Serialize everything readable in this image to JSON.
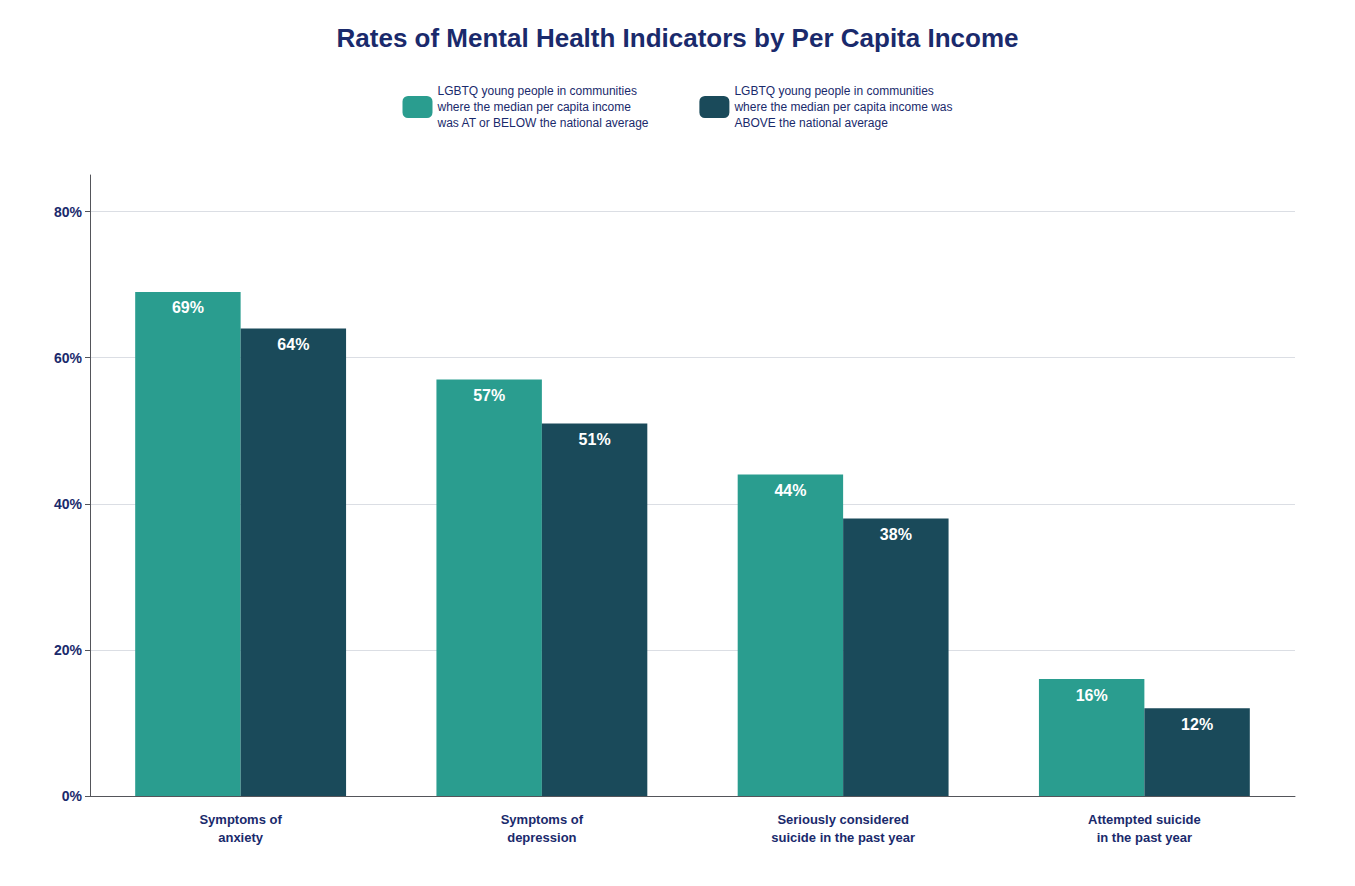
{
  "chart_data": {
    "type": "bar",
    "title": "Rates of Mental Health Indicators by Per Capita Income",
    "categories": [
      "Symptoms of\nanxiety",
      "Symptoms of\ndepression",
      "Seriously considered\nsuicide in the past year",
      "Attempted suicide\nin the past year"
    ],
    "series": [
      {
        "name": "LGBTQ young people in communities\nwhere the median per capita income\nwas AT or BELOW the national average",
        "color": "#2a9d8f",
        "values": [
          69,
          57,
          44,
          16
        ],
        "value_labels": [
          "69%",
          "57%",
          "44%",
          "16%"
        ]
      },
      {
        "name": "LGBTQ young people in communities\nwhere the median per capita income was\nABOVE the national average",
        "color": "#1a4a5a",
        "values": [
          64,
          51,
          38,
          12
        ],
        "value_labels": [
          "64%",
          "51%",
          "38%",
          "12%"
        ]
      }
    ],
    "ylim": [
      0,
      85
    ],
    "yticks": [
      {
        "value": 0,
        "label": "0%"
      },
      {
        "value": 20,
        "label": "20%"
      },
      {
        "value": 40,
        "label": "40%"
      },
      {
        "value": 60,
        "label": "60%"
      },
      {
        "value": 80,
        "label": "80%"
      }
    ],
    "grid": true,
    "legend": "top",
    "data_labels": true
  }
}
